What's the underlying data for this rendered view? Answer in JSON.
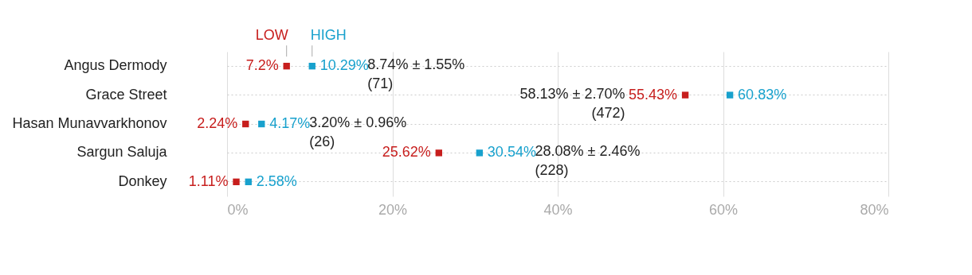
{
  "chart_data": {
    "type": "scatter",
    "orientation": "horizontal",
    "categories": [
      "Angus Dermody",
      "Grace Street",
      "Hasan Munavvarkhonov",
      "Sargun Saluja",
      "Donkey"
    ],
    "series": [
      {
        "name": "LOW",
        "color": "#c71e1d",
        "values": [
          7.2,
          55.43,
          2.24,
          25.62,
          1.11
        ],
        "value_labels": [
          "7.2%",
          "55.43%",
          "2.24%",
          "25.62%",
          "1.11%"
        ]
      },
      {
        "name": "HIGH",
        "color": "#18a1cd",
        "values": [
          10.29,
          60.83,
          4.17,
          30.54,
          2.58
        ],
        "value_labels": [
          "10.29%",
          "60.83%",
          "4.17%",
          "30.54%",
          "2.58%"
        ]
      }
    ],
    "annotations": [
      "8.74% ± 1.55% (71)",
      "58.13% ± 2.70% (472)",
      "3.20% ± 0.96% (26)",
      "28.08% ± 2.46% (228)"
    ],
    "marker": "square",
    "xlim": [
      0,
      80
    ],
    "xticks": [
      {
        "value": 0,
        "label": "0%"
      },
      {
        "value": 20,
        "label": "20%"
      },
      {
        "value": 40,
        "label": "40%"
      },
      {
        "value": 60,
        "label": "60%"
      },
      {
        "value": 80,
        "label": "80%"
      }
    ],
    "grid": true
  }
}
